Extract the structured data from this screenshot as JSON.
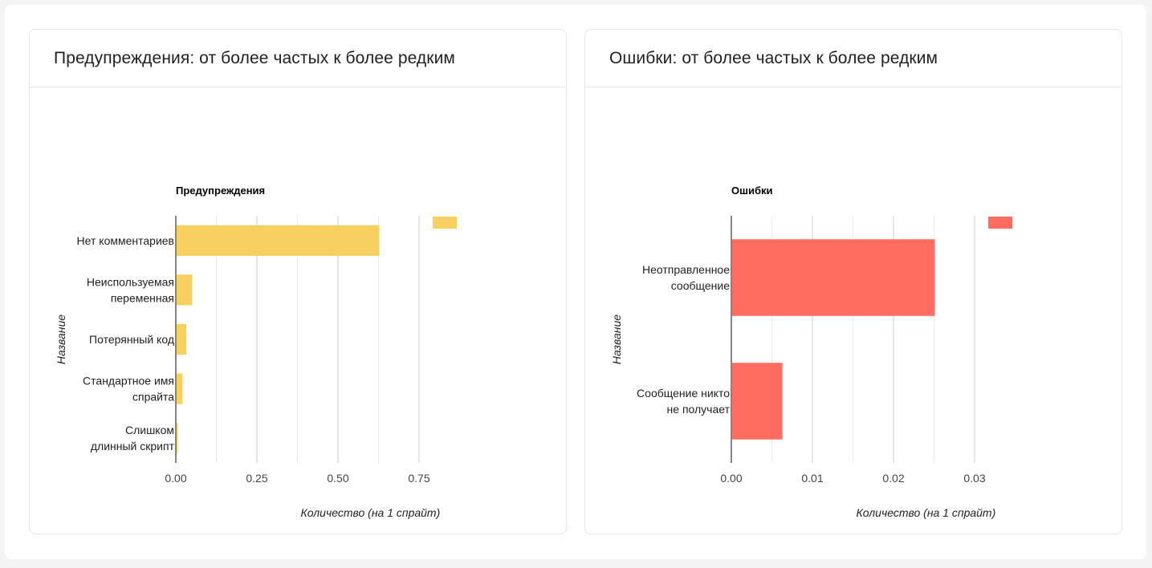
{
  "cards": [
    {
      "header": "Предупреждения: от более частых к более редким",
      "chart_data": {
        "type": "bar",
        "orientation": "horizontal",
        "title": "Предупреждения",
        "xlabel": "Количество (на 1 спрайт)",
        "ylabel": "Название",
        "color": "#f7d060",
        "xlim": [
          0,
          0.75
        ],
        "xticks": [
          0,
          0.25,
          0.5,
          0.75
        ],
        "xtick_labels": [
          "0.00",
          "0.25",
          "0.50",
          "0.75"
        ],
        "grid": true,
        "legend": "top-right",
        "categories": [
          [
            "Нет комментариев"
          ],
          [
            "Неиспользуемая",
            "переменная"
          ],
          [
            "Потерянный код"
          ],
          [
            "Стандартное имя",
            "спрайта"
          ],
          [
            "Слишком",
            "длинный скрипт"
          ]
        ],
        "values": [
          0.625,
          0.048,
          0.03,
          0.018,
          0.003
        ]
      }
    },
    {
      "header": "Ошибки: от более частых к более редким",
      "chart_data": {
        "type": "bar",
        "orientation": "horizontal",
        "title": "Ошибки",
        "xlabel": "Количество (на 1 спрайт)",
        "ylabel": "Название",
        "color": "#ff6b5e",
        "xlim": [
          0,
          0.03
        ],
        "xticks": [
          0,
          0.01,
          0.02,
          0.03
        ],
        "xtick_labels": [
          "0.00",
          "0.01",
          "0.02",
          "0.03"
        ],
        "grid": true,
        "legend": "top-right",
        "categories": [
          [
            "Неотправленное",
            "сообщение"
          ],
          [
            "Сообщение никто",
            "не получает"
          ]
        ],
        "values": [
          0.025,
          0.0062
        ]
      }
    }
  ]
}
